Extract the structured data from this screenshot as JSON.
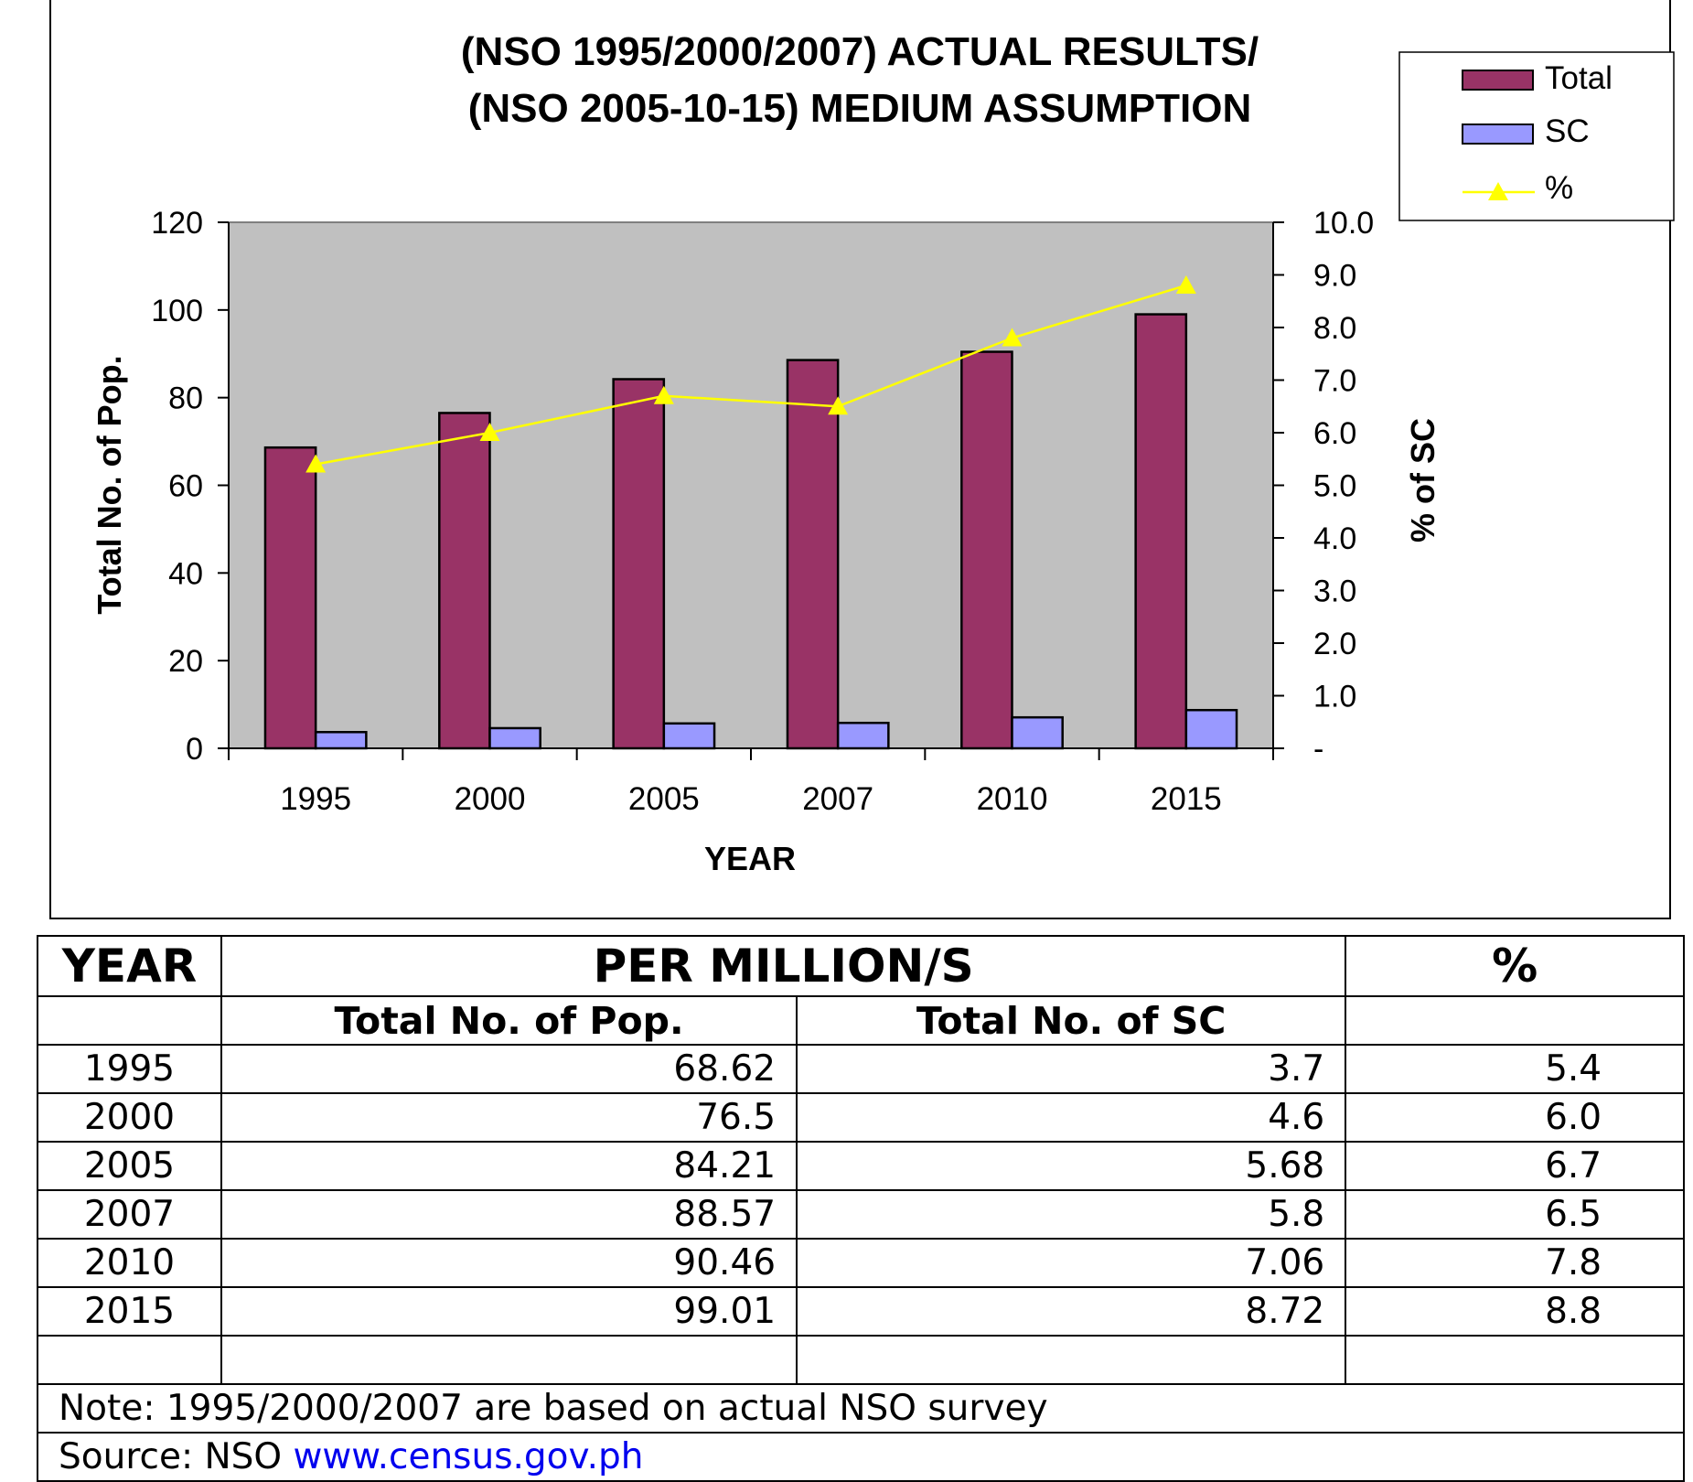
{
  "chart_data": {
    "type": "bar",
    "title": [
      "(NSO 1995/2000/2007) ACTUAL RESULTS/",
      "(NSO 2005-10-15) MEDIUM ASSUMPTION"
    ],
    "categories": [
      "1995",
      "2000",
      "2005",
      "2007",
      "2010",
      "2015"
    ],
    "series": [
      {
        "name": "Total",
        "type": "bar",
        "axis": "left",
        "color": "#993366",
        "values": [
          68.62,
          76.5,
          84.21,
          88.57,
          90.46,
          99.01
        ]
      },
      {
        "name": "SC",
        "type": "bar",
        "axis": "left",
        "color": "#9999ff",
        "values": [
          3.7,
          4.6,
          5.68,
          5.8,
          7.06,
          8.72
        ]
      },
      {
        "name": "%",
        "type": "line",
        "axis": "right",
        "color": "#ffff00",
        "marker": "triangle",
        "values": [
          5.4,
          6.0,
          6.7,
          6.5,
          7.8,
          8.8
        ]
      }
    ],
    "xlabel": "YEAR",
    "ylabel": "Total No. of Pop.",
    "y2label": "% of SC",
    "ylim": [
      0,
      120
    ],
    "y2lim": [
      0,
      10
    ],
    "yticks": [
      "0",
      "20",
      "40",
      "60",
      "80",
      "100",
      "120"
    ],
    "y2ticks": [
      "-",
      "1.0",
      "2.0",
      "3.0",
      "4.0",
      "5.0",
      "6.0",
      "7.0",
      "8.0",
      "9.0",
      "10.0"
    ],
    "legend": "top-right",
    "plot_background": "#c0c0c0",
    "grid": false
  },
  "table": {
    "header1": {
      "year": "YEAR",
      "group": "PER MILLION/S",
      "pct": "%"
    },
    "header2": {
      "year": "",
      "pop": "Total No. of Pop.",
      "sc": "Total No. of SC",
      "pct": ""
    },
    "rows": [
      {
        "year": "1995",
        "pop": "68.62",
        "sc": "3.7",
        "pct": "5.4"
      },
      {
        "year": "2000",
        "pop": "76.5",
        "sc": "4.6",
        "pct": "6.0"
      },
      {
        "year": "2005",
        "pop": "84.21",
        "sc": "5.68",
        "pct": "6.7"
      },
      {
        "year": "2007",
        "pop": "88.57",
        "sc": "5.8",
        "pct": "6.5"
      },
      {
        "year": "2010",
        "pop": "90.46",
        "sc": "7.06",
        "pct": "7.8"
      },
      {
        "year": "2015",
        "pop": "99.01",
        "sc": "8.72",
        "pct": "8.8"
      }
    ],
    "note": "Note: 1995/2000/2007 are based on actual NSO survey",
    "source_prefix": "Source: NSO ",
    "source_link": "www.census.gov.ph"
  }
}
